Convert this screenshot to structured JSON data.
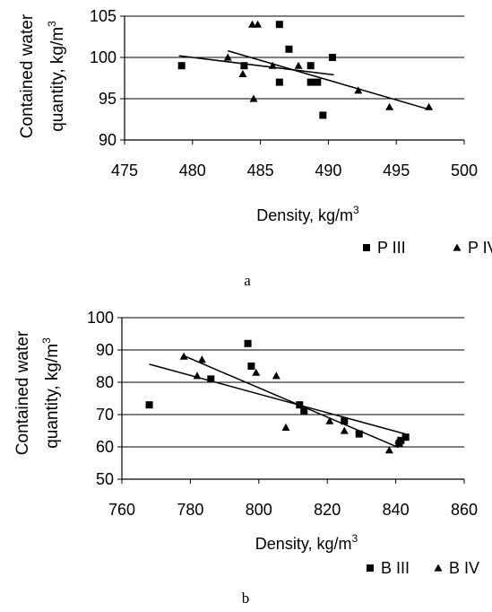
{
  "chart_data": [
    {
      "type": "scatter",
      "panel_label": "a",
      "xlabel": "Density, kg/m",
      "xlabel_sup": "3",
      "ylabel_line1": "Contained water",
      "ylabel_line2": "quantity, kg/m",
      "ylabel_sup": "3",
      "xlim": [
        475,
        500
      ],
      "ylim": [
        90,
        105
      ],
      "xticks": [
        "475",
        "480",
        "485",
        "490",
        "495",
        "500"
      ],
      "yticks": [
        "90",
        "95",
        "100",
        "105"
      ],
      "grid": "horizontal",
      "legend_position": "bottom-right",
      "series": [
        {
          "name": "P III",
          "marker": "square",
          "points": [
            [
              479.2,
              99
            ],
            [
              483.8,
              99
            ],
            [
              486.4,
              104
            ],
            [
              486.4,
              97
            ],
            [
              487.1,
              101
            ],
            [
              488.7,
              99
            ],
            [
              488.7,
              97
            ],
            [
              489.2,
              97
            ],
            [
              489.6,
              93
            ],
            [
              490.3,
              100
            ]
          ],
          "trend": [
            [
              479,
              100.2
            ],
            [
              490.4,
              97.9
            ]
          ]
        },
        {
          "name": "P IV",
          "marker": "triangle",
          "points": [
            [
              482.6,
              100
            ],
            [
              483.7,
              98
            ],
            [
              484.4,
              104
            ],
            [
              484.5,
              95
            ],
            [
              484.8,
              104
            ],
            [
              485.9,
              99
            ],
            [
              487.8,
              99
            ],
            [
              492.2,
              96
            ],
            [
              494.5,
              94
            ],
            [
              497.4,
              94
            ]
          ],
          "trend": [
            [
              482.6,
              100.8
            ],
            [
              497.4,
              93.7
            ]
          ]
        }
      ]
    },
    {
      "type": "scatter",
      "panel_label": "b",
      "xlabel": "Density, kg/m",
      "xlabel_sup": "3",
      "ylabel_line1": "Contained water",
      "ylabel_line2": "quantity, kg/m",
      "ylabel_sup": "3",
      "xlim": [
        760,
        860
      ],
      "ylim": [
        50,
        100
      ],
      "xticks": [
        "760",
        "780",
        "800",
        "820",
        "840",
        "860"
      ],
      "yticks": [
        "50",
        "60",
        "70",
        "80",
        "90",
        "100"
      ],
      "grid": "horizontal",
      "legend_position": "bottom-right",
      "series": [
        {
          "name": "B III",
          "marker": "square",
          "points": [
            [
              768,
              73
            ],
            [
              786,
              81
            ],
            [
              796.8,
              92
            ],
            [
              797.8,
              85
            ],
            [
              811.9,
              73
            ],
            [
              813.2,
              71
            ],
            [
              825,
              68
            ],
            [
              829.3,
              64
            ],
            [
              841,
              61
            ],
            [
              841.5,
              62
            ],
            [
              842.9,
              63
            ]
          ],
          "trend": [
            [
              768,
              85.6
            ],
            [
              842.8,
              64
            ]
          ]
        },
        {
          "name": "B IV",
          "marker": "triangle",
          "points": [
            [
              778.1,
              88
            ],
            [
              782,
              82
            ],
            [
              783.4,
              87
            ],
            [
              799.2,
              83
            ],
            [
              805.1,
              82
            ],
            [
              807.9,
              66
            ],
            [
              820.7,
              68
            ],
            [
              825,
              65
            ],
            [
              838.1,
              59
            ],
            [
              840.8,
              62
            ]
          ],
          "trend": [
            [
              778.1,
              88.2
            ],
            [
              840.8,
              59.8
            ]
          ]
        }
      ]
    }
  ]
}
